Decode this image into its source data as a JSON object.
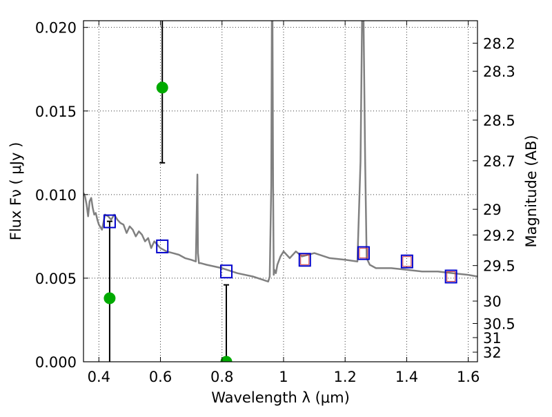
{
  "chart_data": {
    "type": "line",
    "title": "",
    "xlabel": "Wavelength  λ (μm)",
    "ylabel": "Flux  Fν  ( μJy )",
    "y2label": "Magnitude (AB)",
    "xlim": [
      0.35,
      1.63
    ],
    "ylim": [
      0.0,
      0.0204
    ],
    "grid": true,
    "x_ticks": [
      0.4,
      0.6,
      0.8,
      1.0,
      1.2,
      1.4,
      1.6
    ],
    "x_tick_labels": [
      "0.4",
      "0.6",
      "0.8",
      "1",
      "1.2",
      "1.4",
      "1.6"
    ],
    "y_ticks": [
      0.0,
      0.005,
      0.01,
      0.015,
      0.02
    ],
    "y_tick_labels": [
      "0.000",
      "0.005",
      "0.010",
      "0.015",
      "0.020"
    ],
    "mag_ticks": [
      28.2,
      28.3,
      28.5,
      28.7,
      29,
      29.2,
      29.5,
      30,
      30.5,
      31,
      32
    ],
    "mag_tick_labels": [
      "28.2",
      "28.3",
      "28.5",
      "28.7",
      "29",
      "29.2",
      "29.5",
      "30",
      "30.5",
      "31",
      "32"
    ],
    "colors": {
      "sed": "#808080",
      "model_flux": "#0000cc",
      "model_flux_inner": "#d23c3c",
      "observed": "#00aa00",
      "errorbar": "#000000"
    },
    "series": [
      {
        "kind": "sed",
        "x": [
          0.35,
          0.355,
          0.36,
          0.365,
          0.37,
          0.375,
          0.38,
          0.385,
          0.39,
          0.395,
          0.4,
          0.41,
          0.42,
          0.43,
          0.44,
          0.45,
          0.46,
          0.47,
          0.48,
          0.49,
          0.5,
          0.51,
          0.52,
          0.53,
          0.54,
          0.55,
          0.56,
          0.57,
          0.58,
          0.6,
          0.62,
          0.64,
          0.66,
          0.68,
          0.7,
          0.715,
          0.72,
          0.722,
          0.725,
          0.73,
          0.75,
          0.8,
          0.85,
          0.9,
          0.95,
          0.955,
          0.96,
          0.962,
          0.964,
          0.966,
          0.968,
          0.97,
          0.975,
          0.98,
          0.99,
          1.0,
          1.02,
          1.04,
          1.06,
          1.08,
          1.1,
          1.15,
          1.2,
          1.24,
          1.25,
          1.255,
          1.26,
          1.265,
          1.27,
          1.28,
          1.3,
          1.35,
          1.4,
          1.45,
          1.5,
          1.55,
          1.6,
          1.63
        ],
        "y": [
          0.0101,
          0.0099,
          0.0094,
          0.0087,
          0.0096,
          0.0098,
          0.0092,
          0.0088,
          0.0089,
          0.0085,
          0.0082,
          0.0079,
          0.0088,
          0.0087,
          0.0085,
          0.0088,
          0.0085,
          0.0083,
          0.0082,
          0.0077,
          0.0081,
          0.0079,
          0.0075,
          0.0078,
          0.0076,
          0.0072,
          0.0074,
          0.0068,
          0.0072,
          0.0068,
          0.0066,
          0.0065,
          0.0064,
          0.0062,
          0.0061,
          0.006,
          0.0112,
          0.0065,
          0.0059,
          0.0059,
          0.0058,
          0.0056,
          0.0053,
          0.0051,
          0.0048,
          0.0051,
          0.0105,
          0.0204,
          0.0204,
          0.0105,
          0.0052,
          0.0055,
          0.0053,
          0.0058,
          0.0063,
          0.0066,
          0.0062,
          0.0066,
          0.0063,
          0.0064,
          0.0065,
          0.0062,
          0.0061,
          0.006,
          0.012,
          0.0204,
          0.0204,
          0.012,
          0.0062,
          0.0058,
          0.0056,
          0.0056,
          0.0055,
          0.0054,
          0.0054,
          0.0053,
          0.0052,
          0.0051
        ]
      },
      {
        "kind": "model_photometry",
        "points": [
          {
            "x": 0.435,
            "y": 0.0084,
            "inner": false
          },
          {
            "x": 0.606,
            "y": 0.0069,
            "inner": false
          },
          {
            "x": 0.814,
            "y": 0.0054,
            "inner": false
          },
          {
            "x": 1.069,
            "y": 0.0061,
            "inner": true
          },
          {
            "x": 1.26,
            "y": 0.0065,
            "inner": true
          },
          {
            "x": 1.401,
            "y": 0.006,
            "inner": true
          },
          {
            "x": 1.544,
            "y": 0.0051,
            "inner": true
          }
        ]
      },
      {
        "kind": "observed_photometry",
        "points": [
          {
            "x": 0.435,
            "y": 0.0038,
            "err_low": 0.0,
            "err_high": 0.0084
          },
          {
            "x": 0.606,
            "y": 0.0164,
            "err_low": 0.0119,
            "err_high": 0.0204
          },
          {
            "x": 0.814,
            "y": 0.0,
            "err_low": 0.0,
            "err_high": 0.0046
          }
        ]
      }
    ]
  }
}
